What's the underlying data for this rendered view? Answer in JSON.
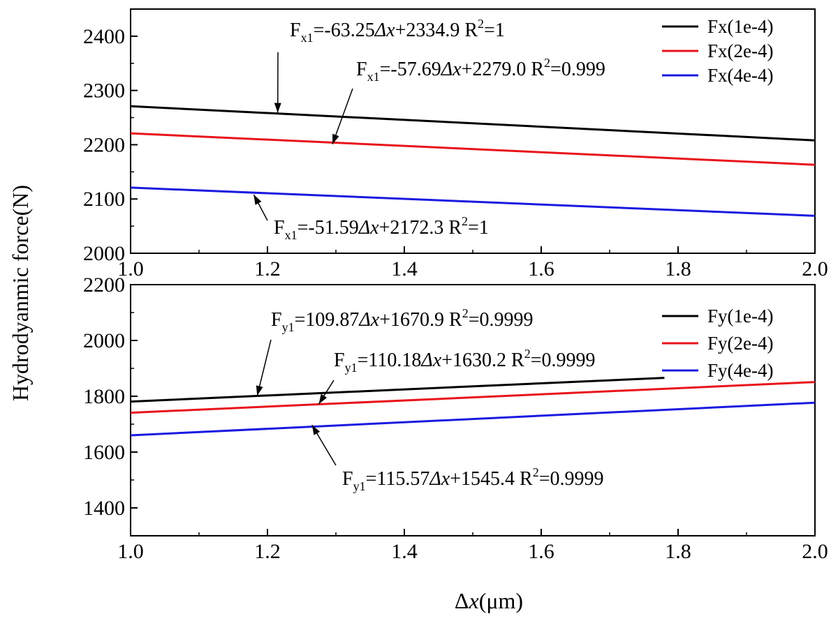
{
  "chart_data": [
    {
      "type": "line",
      "panel": "top",
      "ylim": [
        2000,
        2450
      ],
      "yticks": [
        2000,
        2100,
        2200,
        2300,
        2400
      ],
      "xlim": [
        1.0,
        2.0
      ],
      "xticks": [
        1.0,
        1.2,
        1.4,
        1.6,
        1.8,
        2.0
      ],
      "grid": false,
      "legend_position": "top-right",
      "series": [
        {
          "name": "Fx(1e-4)",
          "color": "#000000",
          "x": [
            1.0,
            2.0
          ],
          "y": [
            2271,
            2208
          ]
        },
        {
          "name": "Fx(2e-4)",
          "color": "#e8141b",
          "x": [
            1.0,
            2.0
          ],
          "y": [
            2221,
            2163
          ]
        },
        {
          "name": "Fx(4e-4)",
          "color": "#1a1ae0",
          "x": [
            1.0,
            2.0
          ],
          "y": [
            2121,
            2069
          ]
        }
      ],
      "annotations": [
        {
          "sub": "x1",
          "main": "=-63.25",
          "mid": "+2334.9 R",
          "tail": "=1",
          "arrow_x": 1.215,
          "arrow_y": 2259
        },
        {
          "sub": "x1",
          "main": "=-57.69",
          "mid": "+2279.0 R",
          "tail": "=0.999",
          "arrow_x": 1.295,
          "arrow_y": 2201
        },
        {
          "sub": "x1",
          "main": "=-51.59",
          "mid": "+2172.3 R",
          "tail": "=1",
          "arrow_x": 1.18,
          "arrow_y": 2108
        }
      ]
    },
    {
      "type": "line",
      "panel": "bottom",
      "ylim": [
        1300,
        2200
      ],
      "yticks": [
        1400,
        1600,
        1800,
        2000,
        2200
      ],
      "xlim": [
        1.0,
        2.0
      ],
      "xticks": [
        1.0,
        1.2,
        1.4,
        1.6,
        1.8,
        2.0
      ],
      "xlabel_prefix": "Δ",
      "xlabel_var": "x",
      "xlabel_unit": "(μm)",
      "grid": false,
      "legend_position": "top-right",
      "series": [
        {
          "name": "Fy(1e-4)",
          "color": "#000000",
          "x": [
            1.0,
            1.78
          ],
          "y": [
            1781,
            1866
          ]
        },
        {
          "name": "Fy(2e-4)",
          "color": "#e8141b",
          "x": [
            1.0,
            2.0
          ],
          "y": [
            1741,
            1851
          ]
        },
        {
          "name": "Fy(4e-4)",
          "color": "#1a1ae0",
          "x": [
            1.0,
            2.0
          ],
          "y": [
            1660,
            1777
          ]
        }
      ],
      "annotations": [
        {
          "sub": "y1",
          "main": "=109.87",
          "mid": "+1670.9 R",
          "tail": "=0.9999",
          "arrow_x": 1.185,
          "arrow_y": 1802
        },
        {
          "sub": "y1",
          "main": "=110.18",
          "mid": "+1630.2 R",
          "tail": "=0.9999",
          "arrow_x": 1.275,
          "arrow_y": 1772
        },
        {
          "sub": "y1",
          "main": "=115.57",
          "mid": "+1545.4 R",
          "tail": "=0.9999",
          "arrow_x": 1.265,
          "arrow_y": 1697
        }
      ]
    }
  ],
  "ylabel": "Hydrodyanmic force(N)",
  "ann_letter": "F",
  "ann_delta": "Δx",
  "ann_sup": "2"
}
